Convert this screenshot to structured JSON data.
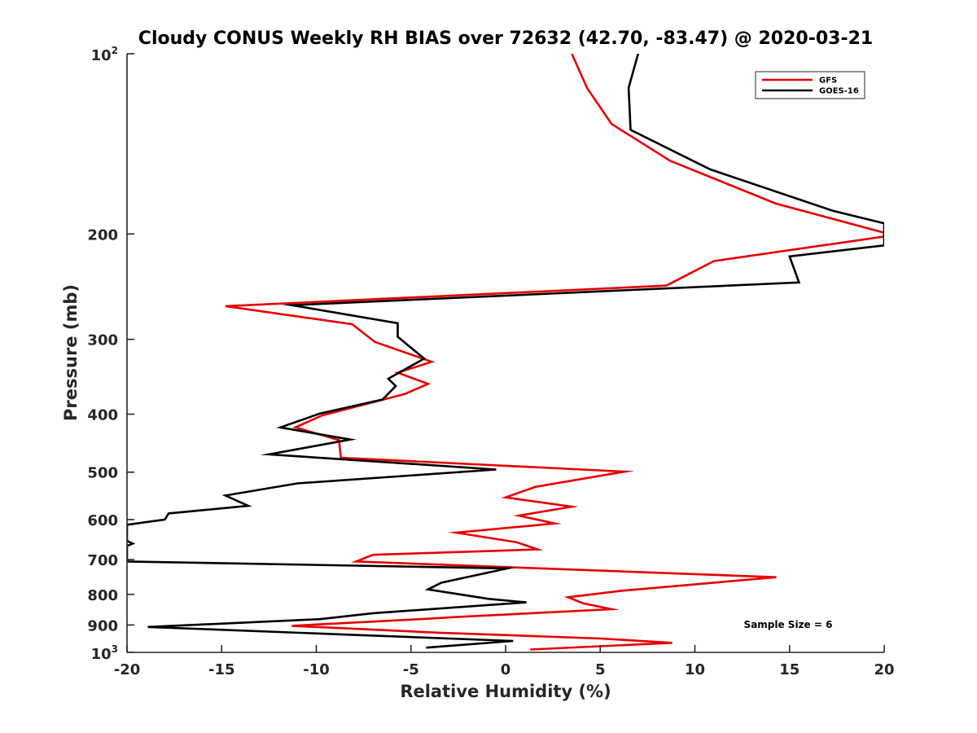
{
  "chart_data": {
    "type": "line",
    "title": "Cloudy CONUS Weekly RH BIAS over 72632 (42.70, -83.47) @ 2020-03-21",
    "xlabel": "Relative Humidity (%)",
    "ylabel": "Pressure (mb)",
    "xlim": [
      -20,
      20
    ],
    "ylim": [
      100,
      1000
    ],
    "yscale": "log",
    "yreversed": true,
    "grid": false,
    "legend_position": "top-right",
    "x_ticks": [
      "-20",
      "-15",
      "-10",
      "-5",
      "0",
      "5",
      "10",
      "15",
      "20"
    ],
    "y_ticks": [
      {
        "value": 100,
        "base": "10",
        "exp": "2"
      },
      {
        "value": 200,
        "label": "200"
      },
      {
        "value": 300,
        "label": "300"
      },
      {
        "value": 400,
        "label": "400"
      },
      {
        "value": 500,
        "label": "500"
      },
      {
        "value": 600,
        "label": "600"
      },
      {
        "value": 700,
        "label": "700"
      },
      {
        "value": 800,
        "label": "800"
      },
      {
        "value": 900,
        "label": "900"
      },
      {
        "value": 1000,
        "base": "10",
        "exp": "3"
      }
    ],
    "annotation": "Sample Size = 6",
    "series": [
      {
        "name": "GFS",
        "color": "#e60000",
        "points": [
          [
            3.5,
            100
          ],
          [
            4.3,
            114
          ],
          [
            5.6,
            131
          ],
          [
            8.7,
            151
          ],
          [
            14.3,
            178
          ],
          [
            20.0,
            199
          ],
          [
            20.0,
            202
          ],
          [
            11.0,
            222
          ],
          [
            8.5,
            244
          ],
          [
            -14.8,
            264
          ],
          [
            -8.1,
            283
          ],
          [
            -6.9,
            303
          ],
          [
            -3.9,
            327
          ],
          [
            -5.7,
            341
          ],
          [
            -4.1,
            356
          ],
          [
            -5.3,
            370
          ],
          [
            -9.7,
            402
          ],
          [
            -11.1,
            421
          ],
          [
            -8.8,
            442
          ],
          [
            -8.7,
            473
          ],
          [
            6.3,
            499
          ],
          [
            1.6,
            529
          ],
          [
            0.0,
            551
          ],
          [
            3.5,
            571
          ],
          [
            0.7,
            591
          ],
          [
            2.6,
            609
          ],
          [
            -2.6,
            631
          ],
          [
            0.6,
            655
          ],
          [
            1.7,
            673
          ],
          [
            -7.0,
            687
          ],
          [
            -7.9,
            705
          ],
          [
            14.3,
            749
          ],
          [
            6.1,
            789
          ],
          [
            3.3,
            809
          ],
          [
            4.1,
            828
          ],
          [
            5.6,
            847
          ],
          [
            -2.6,
            873
          ],
          [
            -4.2,
            879
          ],
          [
            -11.3,
            903
          ],
          [
            -3.6,
            927
          ],
          [
            5.0,
            948
          ],
          [
            8.8,
            964
          ],
          [
            1.3,
            989
          ]
        ]
      },
      {
        "name": "GOES-16",
        "color": "#000000",
        "points": [
          [
            7.0,
            100
          ],
          [
            6.5,
            114
          ],
          [
            6.6,
            134
          ],
          [
            10.8,
            156
          ],
          [
            17.3,
            183
          ],
          [
            20.0,
            192
          ],
          [
            20.0,
            209
          ],
          [
            15.0,
            218
          ],
          [
            15.5,
            241
          ],
          [
            -11.3,
            263
          ],
          [
            -5.7,
            282
          ],
          [
            -5.7,
            297
          ],
          [
            -4.3,
            323
          ],
          [
            -6.2,
            349
          ],
          [
            -5.8,
            359
          ],
          [
            -6.5,
            378
          ],
          [
            -9.8,
            399
          ],
          [
            -11.9,
            421
          ],
          [
            -8.2,
            441
          ],
          [
            -12.5,
            467
          ],
          [
            -0.5,
            495
          ],
          [
            -11.0,
            522
          ],
          [
            -14.8,
            547
          ],
          [
            -13.6,
            569
          ],
          [
            -17.8,
            586
          ],
          [
            -18.0,
            600
          ],
          [
            -20.0,
            612
          ],
          [
            -20.0,
            651
          ],
          [
            -19.7,
            658
          ],
          [
            -20.0,
            664
          ],
          [
            -20.0,
            705
          ],
          [
            0.1,
            724
          ],
          [
            -3.4,
            765
          ],
          [
            -4.1,
            785
          ],
          [
            -0.9,
            814
          ],
          [
            1.1,
            825
          ],
          [
            -7.0,
            860
          ],
          [
            -9.8,
            880
          ],
          [
            -18.9,
            907
          ],
          [
            -8.7,
            933
          ],
          [
            0.4,
            957
          ],
          [
            -4.2,
            982
          ]
        ]
      }
    ]
  }
}
